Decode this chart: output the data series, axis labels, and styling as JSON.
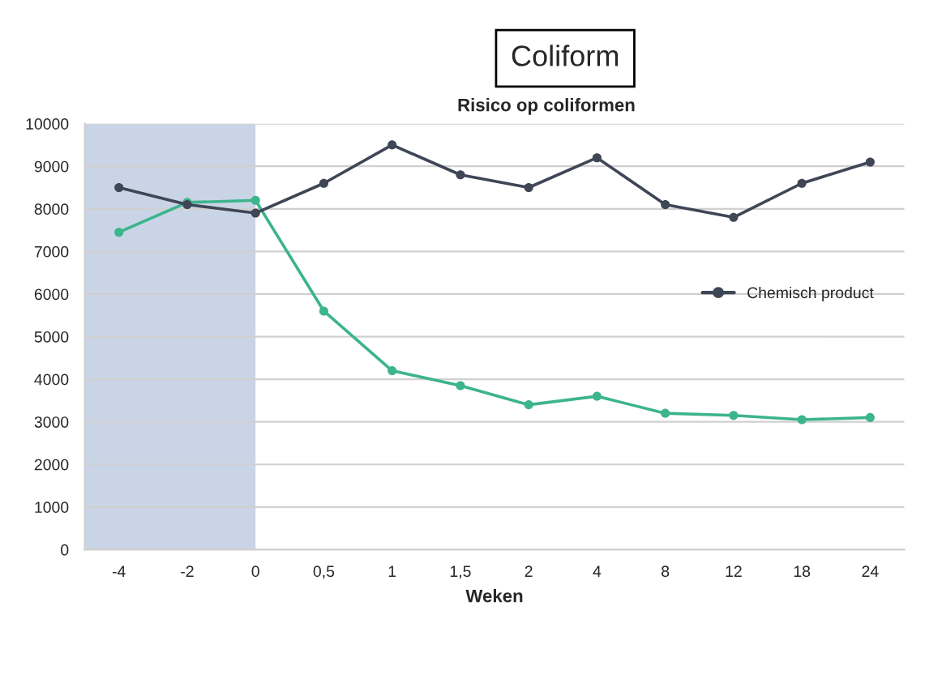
{
  "chart_data": {
    "type": "line",
    "title": "Coliform",
    "subtitle": "Risico op coliformen",
    "xlabel": "Weken",
    "categories": [
      "-4",
      "-2",
      "0",
      "0,5",
      "1",
      "1,5",
      "2",
      "4",
      "8",
      "12",
      "18",
      "24"
    ],
    "series": [
      {
        "name": "Chemisch product",
        "color": "#3f4656",
        "values": [
          8500,
          8100,
          7900,
          8600,
          9500,
          8800,
          8500,
          9200,
          8100,
          7800,
          8600,
          9100
        ]
      },
      {
        "color": "#3cb48c",
        "values": [
          7450,
          8150,
          8200,
          5600,
          4200,
          3850,
          3400,
          3600,
          3200,
          3150,
          3050,
          3100
        ]
      }
    ],
    "bands": [
      {
        "axis": "x",
        "from": "-4",
        "to": "0",
        "color": "#c9d5e6"
      }
    ],
    "ylim": [
      0,
      10000
    ],
    "yticks": [
      0,
      1000,
      2000,
      3000,
      4000,
      5000,
      6000,
      7000,
      8000,
      9000,
      10000
    ],
    "grid": "y",
    "legend": "right",
    "marker": "circle",
    "line_style": "solid"
  }
}
